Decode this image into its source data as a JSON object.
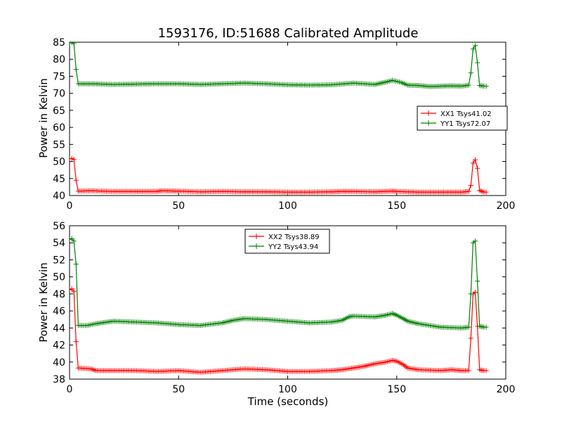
{
  "figure": {
    "title": "1593176, ID:51688 Calibrated Amplitude"
  },
  "chart_data": [
    {
      "type": "line",
      "title": "1593176, ID:51688 Calibrated Amplitude",
      "xlabel": "",
      "ylabel": "Power in Kelvin",
      "xlim": [
        0,
        200
      ],
      "ylim": [
        40,
        85
      ],
      "xticks": [
        "0",
        "50",
        "100",
        "150",
        "200"
      ],
      "yticks": [
        "40",
        "45",
        "50",
        "55",
        "60",
        "65",
        "70",
        "75",
        "80",
        "85"
      ],
      "grid": false,
      "legend_position": "center-right",
      "marker": "+",
      "series": [
        {
          "name": "XX1 Tsys41.02",
          "color": "#ff0000",
          "points": [
            [
              0,
              50.8
            ],
            [
              1,
              50.9
            ],
            [
              2,
              50.6
            ],
            [
              3,
              44.5
            ],
            [
              4,
              41.3
            ],
            [
              10,
              41.4
            ],
            [
              20,
              41.2
            ],
            [
              40,
              41.2
            ],
            [
              42,
              41.4
            ],
            [
              50,
              41.3
            ],
            [
              60,
              41.1
            ],
            [
              70,
              41.2
            ],
            [
              80,
              41.1
            ],
            [
              90,
              41.1
            ],
            [
              100,
              41.0
            ],
            [
              110,
              41.0
            ],
            [
              120,
              41.1
            ],
            [
              125,
              41.2
            ],
            [
              130,
              41.2
            ],
            [
              140,
              41.1
            ],
            [
              148,
              41.3
            ],
            [
              150,
              41.2
            ],
            [
              160,
              41.0
            ],
            [
              170,
              41.0
            ],
            [
              180,
              41.0
            ],
            [
              183,
              41.2
            ],
            [
              184,
              43.0
            ],
            [
              185,
              49.5
            ],
            [
              186,
              50.5
            ],
            [
              187,
              48.0
            ],
            [
              188,
              41.5
            ],
            [
              190,
              41.0
            ],
            [
              191,
              41.0
            ]
          ]
        },
        {
          "name": "YY1 Tsys72.07",
          "color": "#008000",
          "points": [
            [
              0,
              84.8
            ],
            [
              1,
              84.9
            ],
            [
              2,
              84.6
            ],
            [
              3,
              77.0
            ],
            [
              4,
              72.8
            ],
            [
              10,
              72.8
            ],
            [
              20,
              72.6
            ],
            [
              30,
              72.7
            ],
            [
              40,
              72.8
            ],
            [
              50,
              72.8
            ],
            [
              60,
              72.6
            ],
            [
              70,
              72.8
            ],
            [
              80,
              73.0
            ],
            [
              90,
              72.8
            ],
            [
              100,
              72.5
            ],
            [
              110,
              72.4
            ],
            [
              120,
              72.5
            ],
            [
              130,
              73.0
            ],
            [
              140,
              72.6
            ],
            [
              145,
              73.3
            ],
            [
              148,
              73.8
            ],
            [
              152,
              73.2
            ],
            [
              155,
              72.4
            ],
            [
              160,
              72.3
            ],
            [
              165,
              72.0
            ],
            [
              170,
              72.1
            ],
            [
              175,
              72.2
            ],
            [
              180,
              72.1
            ],
            [
              183,
              72.4
            ],
            [
              184,
              76.0
            ],
            [
              185,
              83.0
            ],
            [
              186,
              84.0
            ],
            [
              187,
              79.0
            ],
            [
              188,
              72.3
            ],
            [
              190,
              72.1
            ],
            [
              191,
              72.1
            ]
          ]
        }
      ]
    },
    {
      "type": "line",
      "title": "",
      "xlabel": "Time (seconds)",
      "ylabel": "Power in Kelvin",
      "xlim": [
        0,
        200
      ],
      "ylim": [
        38,
        56
      ],
      "xticks": [
        "0",
        "50",
        "100",
        "150",
        "200"
      ],
      "yticks": [
        "38",
        "40",
        "42",
        "44",
        "46",
        "48",
        "50",
        "52",
        "54",
        "56"
      ],
      "grid": false,
      "legend_position": "upper-center",
      "marker": "+",
      "series": [
        {
          "name": "XX2 Tsys38.89",
          "color": "#ff0000",
          "points": [
            [
              0,
              48.5
            ],
            [
              1,
              48.6
            ],
            [
              2,
              48.3
            ],
            [
              3,
              42.4
            ],
            [
              4,
              39.3
            ],
            [
              10,
              39.2
            ],
            [
              12,
              39.0
            ],
            [
              20,
              39.0
            ],
            [
              30,
              39.0
            ],
            [
              40,
              38.9
            ],
            [
              50,
              39.0
            ],
            [
              60,
              38.8
            ],
            [
              70,
              39.0
            ],
            [
              80,
              39.2
            ],
            [
              90,
              39.1
            ],
            [
              100,
              38.9
            ],
            [
              110,
              38.9
            ],
            [
              120,
              39.0
            ],
            [
              125,
              39.1
            ],
            [
              130,
              39.3
            ],
            [
              135,
              39.5
            ],
            [
              140,
              39.8
            ],
            [
              145,
              40.0
            ],
            [
              148,
              40.2
            ],
            [
              150,
              40.1
            ],
            [
              153,
              39.7
            ],
            [
              155,
              39.3
            ],
            [
              160,
              39.1
            ],
            [
              170,
              39.0
            ],
            [
              175,
              39.1
            ],
            [
              180,
              39.0
            ],
            [
              183,
              39.0
            ],
            [
              184,
              42.8
            ],
            [
              185,
              48.0
            ],
            [
              186,
              48.2
            ],
            [
              187,
              44.2
            ],
            [
              188,
              39.1
            ],
            [
              190,
              39.0
            ],
            [
              191,
              39.0
            ]
          ]
        },
        {
          "name": "YY2 Tsys43.94",
          "color": "#008000",
          "points": [
            [
              0,
              54.4
            ],
            [
              1,
              54.5
            ],
            [
              2,
              54.2
            ],
            [
              3,
              51.5
            ],
            [
              4,
              44.3
            ],
            [
              8,
              44.3
            ],
            [
              12,
              44.5
            ],
            [
              20,
              44.8
            ],
            [
              30,
              44.7
            ],
            [
              40,
              44.6
            ],
            [
              50,
              44.4
            ],
            [
              60,
              44.3
            ],
            [
              70,
              44.6
            ],
            [
              75,
              44.9
            ],
            [
              80,
              45.1
            ],
            [
              90,
              45.0
            ],
            [
              100,
              44.8
            ],
            [
              110,
              44.6
            ],
            [
              120,
              44.7
            ],
            [
              125,
              44.9
            ],
            [
              128,
              45.3
            ],
            [
              130,
              45.4
            ],
            [
              140,
              45.3
            ],
            [
              145,
              45.5
            ],
            [
              148,
              45.7
            ],
            [
              150,
              45.5
            ],
            [
              153,
              45.1
            ],
            [
              155,
              44.8
            ],
            [
              160,
              44.5
            ],
            [
              170,
              44.1
            ],
            [
              180,
              44.0
            ],
            [
              183,
              44.1
            ],
            [
              184,
              48.0
            ],
            [
              185,
              54.0
            ],
            [
              186,
              54.2
            ],
            [
              187,
              49.5
            ],
            [
              188,
              44.2
            ],
            [
              190,
              44.1
            ],
            [
              191,
              44.1
            ]
          ]
        }
      ]
    }
  ]
}
